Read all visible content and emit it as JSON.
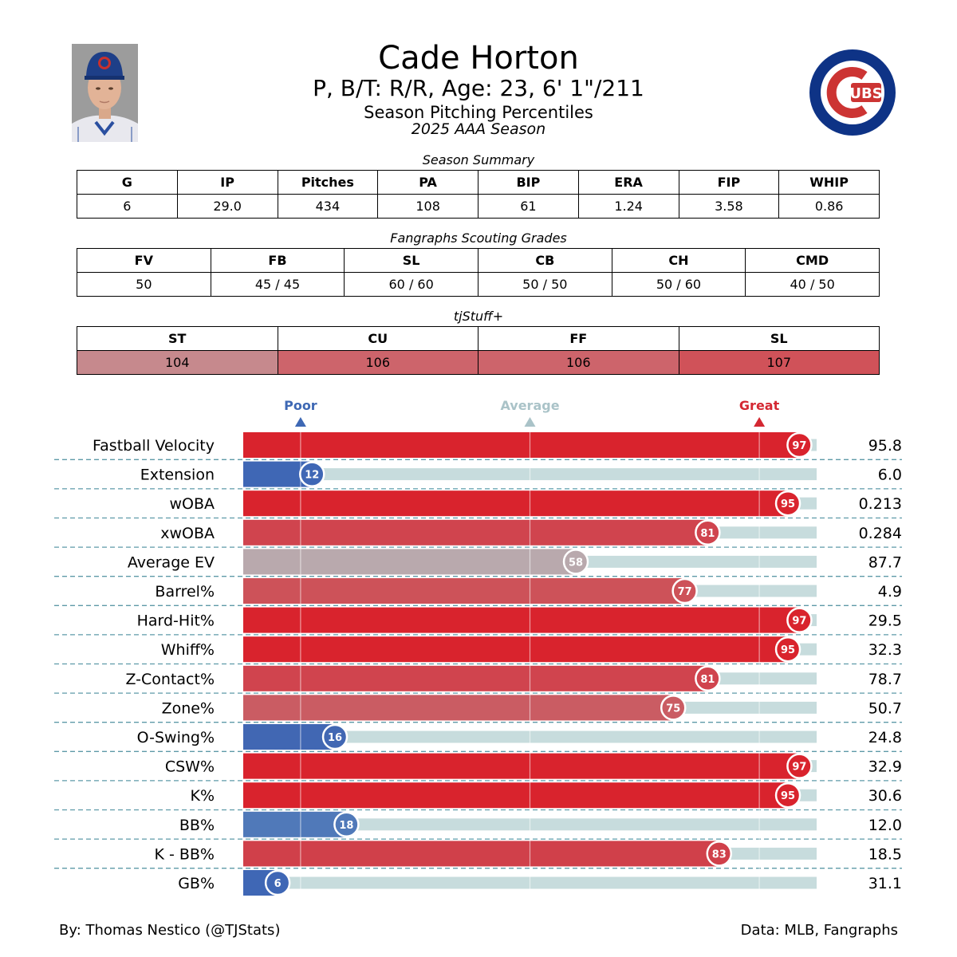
{
  "header": {
    "name": "Cade Horton",
    "bio": "P, B/T: R/R, Age: 23, 6' 1\"/211",
    "subtitle": "Season Pitching Percentiles",
    "season": "2025 AAA Season"
  },
  "summary": {
    "caption": "Season Summary",
    "columns": [
      "G",
      "IP",
      "Pitches",
      "PA",
      "BIP",
      "ERA",
      "FIP",
      "WHIP"
    ],
    "values": [
      "6",
      "29.0",
      "434",
      "108",
      "61",
      "1.24",
      "3.58",
      "0.86"
    ]
  },
  "scouting": {
    "caption": "Fangraphs Scouting Grades",
    "columns": [
      "FV",
      "FB",
      "SL",
      "CB",
      "CH",
      "CMD"
    ],
    "values": [
      "50",
      "45 / 45",
      "60 / 60",
      "50 / 50",
      "50 / 60",
      "40 / 50"
    ]
  },
  "tjstuff": {
    "caption": "tjStuff+",
    "columns": [
      "ST",
      "CU",
      "FF",
      "SL"
    ],
    "values": [
      "104",
      "106",
      "106",
      "107"
    ],
    "cell_colors": [
      "#c6898d",
      "#cd646b",
      "#cd646b",
      "#d05259"
    ]
  },
  "chart_data": {
    "type": "bar",
    "orientation": "horizontal",
    "xlim": [
      0,
      100
    ],
    "markers": [
      {
        "label": "Poor",
        "value": 10,
        "color": "#3e68b4"
      },
      {
        "label": "Average",
        "value": 50,
        "color": "#aac3c8"
      },
      {
        "label": "Great",
        "value": 90,
        "color": "#d42832"
      }
    ],
    "track_color": "#c7dcdd",
    "categories": [
      "Fastball Velocity",
      "Extension",
      "wOBA",
      "xwOBA",
      "Average EV",
      "Barrel%",
      "Hard-Hit%",
      "Whiff%",
      "Z-Contact%",
      "Zone%",
      "O-Swing%",
      "CSW%",
      "K%",
      "BB%",
      "K - BB%",
      "GB%"
    ],
    "percentiles": [
      97,
      12,
      95,
      81,
      58,
      77,
      97,
      95,
      81,
      75,
      16,
      97,
      95,
      18,
      83,
      6
    ],
    "stat_values": [
      "95.8",
      "6.0",
      "0.213",
      "0.284",
      "87.7",
      "4.9",
      "29.5",
      "32.3",
      "78.7",
      "50.7",
      "24.8",
      "32.9",
      "30.6",
      "12.0",
      "18.5",
      "31.1"
    ],
    "bar_colors": [
      "#d9232d",
      "#3f67b5",
      "#d9232d",
      "#d0444e",
      "#b9a9ad",
      "#cd5259",
      "#d9232d",
      "#d9232d",
      "#d0444e",
      "#ca5c63",
      "#4167b3",
      "#d9232d",
      "#d9232d",
      "#5079b9",
      "#d0404a",
      "#3f67b5"
    ]
  },
  "footer": {
    "author": "By: Thomas Nestico (@TJStats)",
    "source": "Data: MLB, Fangraphs"
  }
}
